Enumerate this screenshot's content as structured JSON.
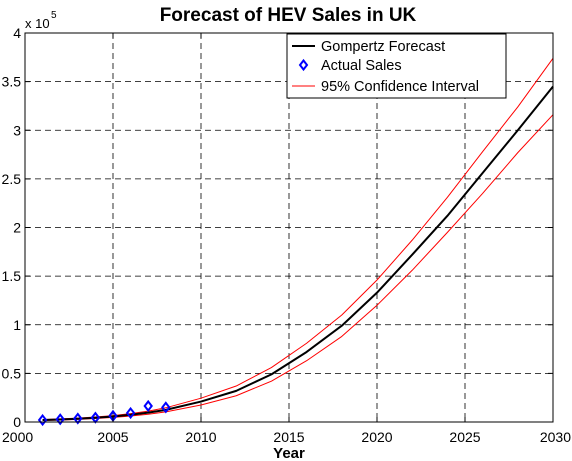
{
  "chart_data": {
    "type": "line",
    "title": "Forecast of HEV Sales in UK",
    "xlabel": "Year",
    "ylabel": "",
    "y_multiplier_base": "x 10",
    "y_multiplier_exp": "5",
    "xlim": [
      2000,
      2030
    ],
    "ylim": [
      0,
      4
    ],
    "grid": true,
    "grid_style": "dashed",
    "legend_position": "top-right",
    "x_ticks": [
      "2000",
      "2005",
      "2010",
      "2015",
      "2020",
      "2025",
      "2030"
    ],
    "y_ticks": [
      "0",
      "0.5",
      "1",
      "1.5",
      "2",
      "2.5",
      "3",
      "3.5",
      "4"
    ],
    "series": [
      {
        "name": "Gompertz Forecast",
        "style": "line",
        "color": "#000000",
        "x": [
          2001,
          2002,
          2003,
          2004,
          2005,
          2006,
          2007,
          2008,
          2010,
          2012,
          2014,
          2016,
          2018,
          2020,
          2022,
          2024,
          2026,
          2028,
          2030
        ],
        "y": [
          0.02,
          0.026,
          0.034,
          0.044,
          0.057,
          0.074,
          0.096,
          0.125,
          0.21,
          0.32,
          0.49,
          0.72,
          0.99,
          1.33,
          1.72,
          2.12,
          2.56,
          3.0,
          3.45
        ]
      },
      {
        "name": "Actual Sales",
        "style": "markers",
        "marker": "diamond",
        "color": "#0000ff",
        "x": [
          2001,
          2002,
          2003,
          2004,
          2005,
          2006,
          2007,
          2008
        ],
        "y": [
          0.02,
          0.028,
          0.036,
          0.045,
          0.063,
          0.092,
          0.165,
          0.15
        ]
      },
      {
        "name": "95% Confidence Interval",
        "style": "thin-line",
        "color": "#ff0000",
        "x": [
          2001,
          2002,
          2003,
          2004,
          2005,
          2006,
          2007,
          2008,
          2010,
          2012,
          2014,
          2016,
          2018,
          2020,
          2022,
          2024,
          2026,
          2028,
          2030
        ],
        "y": [
          0.025,
          0.032,
          0.04,
          0.051,
          0.066,
          0.086,
          0.112,
          0.146,
          0.245,
          0.37,
          0.56,
          0.81,
          1.1,
          1.46,
          1.87,
          2.31,
          2.78,
          3.24,
          3.74
        ]
      },
      {
        "name": "",
        "style": "thin-line",
        "color": "#ff0000",
        "x": [
          2001,
          2002,
          2003,
          2004,
          2005,
          2006,
          2007,
          2008,
          2010,
          2012,
          2014,
          2016,
          2018,
          2020,
          2022,
          2024,
          2026,
          2028,
          2030
        ],
        "y": [
          0.015,
          0.02,
          0.027,
          0.036,
          0.047,
          0.062,
          0.08,
          0.104,
          0.175,
          0.27,
          0.42,
          0.63,
          0.88,
          1.2,
          1.56,
          1.95,
          2.35,
          2.77,
          3.16
        ]
      }
    ]
  }
}
